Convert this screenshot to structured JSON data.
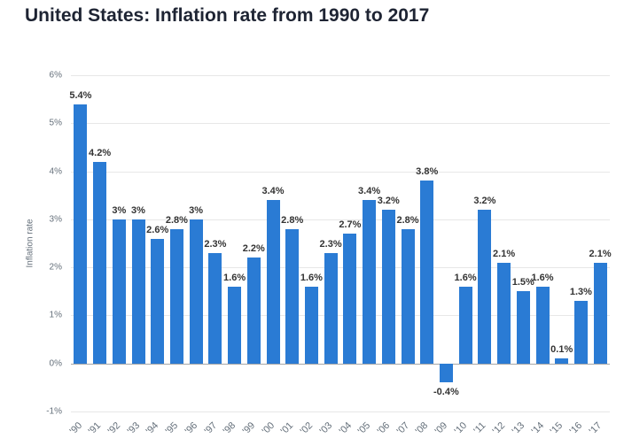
{
  "title": "United States: Inflation rate from 1990 to 2017",
  "chart_data": {
    "type": "bar",
    "title": "United States: Inflation rate from 1990 to 2017",
    "categories": [
      "'90",
      "'91",
      "'92",
      "'93",
      "'94",
      "'95",
      "'96",
      "'97",
      "'98",
      "'99",
      "'00",
      "'01",
      "'02",
      "'03",
      "'04",
      "'05",
      "'06",
      "'07",
      "'08",
      "'09",
      "'10",
      "'11",
      "'12",
      "'13",
      "'14",
      "'15",
      "'16",
      "'17"
    ],
    "values": [
      5.4,
      4.2,
      3,
      3,
      2.6,
      2.8,
      3,
      2.3,
      1.6,
      2.2,
      3.4,
      2.8,
      1.6,
      2.3,
      2.7,
      3.4,
      3.2,
      2.8,
      3.8,
      -0.4,
      1.6,
      3.2,
      2.1,
      1.5,
      1.6,
      0.1,
      1.3,
      2.1
    ],
    "value_labels": [
      "5.4%",
      "4.2%",
      "3%",
      "3%",
      "2.6%",
      "2.8%",
      "3%",
      "2.3%",
      "1.6%",
      "2.2%",
      "3.4%",
      "2.8%",
      "1.6%",
      "2.3%",
      "2.7%",
      "3.4%",
      "3.2%",
      "2.8%",
      "3.8%",
      "-0.4%",
      "1.6%",
      "3.2%",
      "2.1%",
      "1.5%",
      "1.6%",
      "0.1%",
      "1.3%",
      "2.1%"
    ],
    "xlabel": "",
    "ylabel": "Inflation rate",
    "ylim": [
      -1,
      6
    ],
    "y_ticks": [
      6,
      5,
      4,
      3,
      2,
      1,
      0,
      -1
    ],
    "y_tick_labels": [
      "6%",
      "5%",
      "4%",
      "3%",
      "2%",
      "1%",
      "0%",
      "-1%"
    ],
    "grid": true,
    "legend": false,
    "bar_color": "#2a7bd4"
  }
}
